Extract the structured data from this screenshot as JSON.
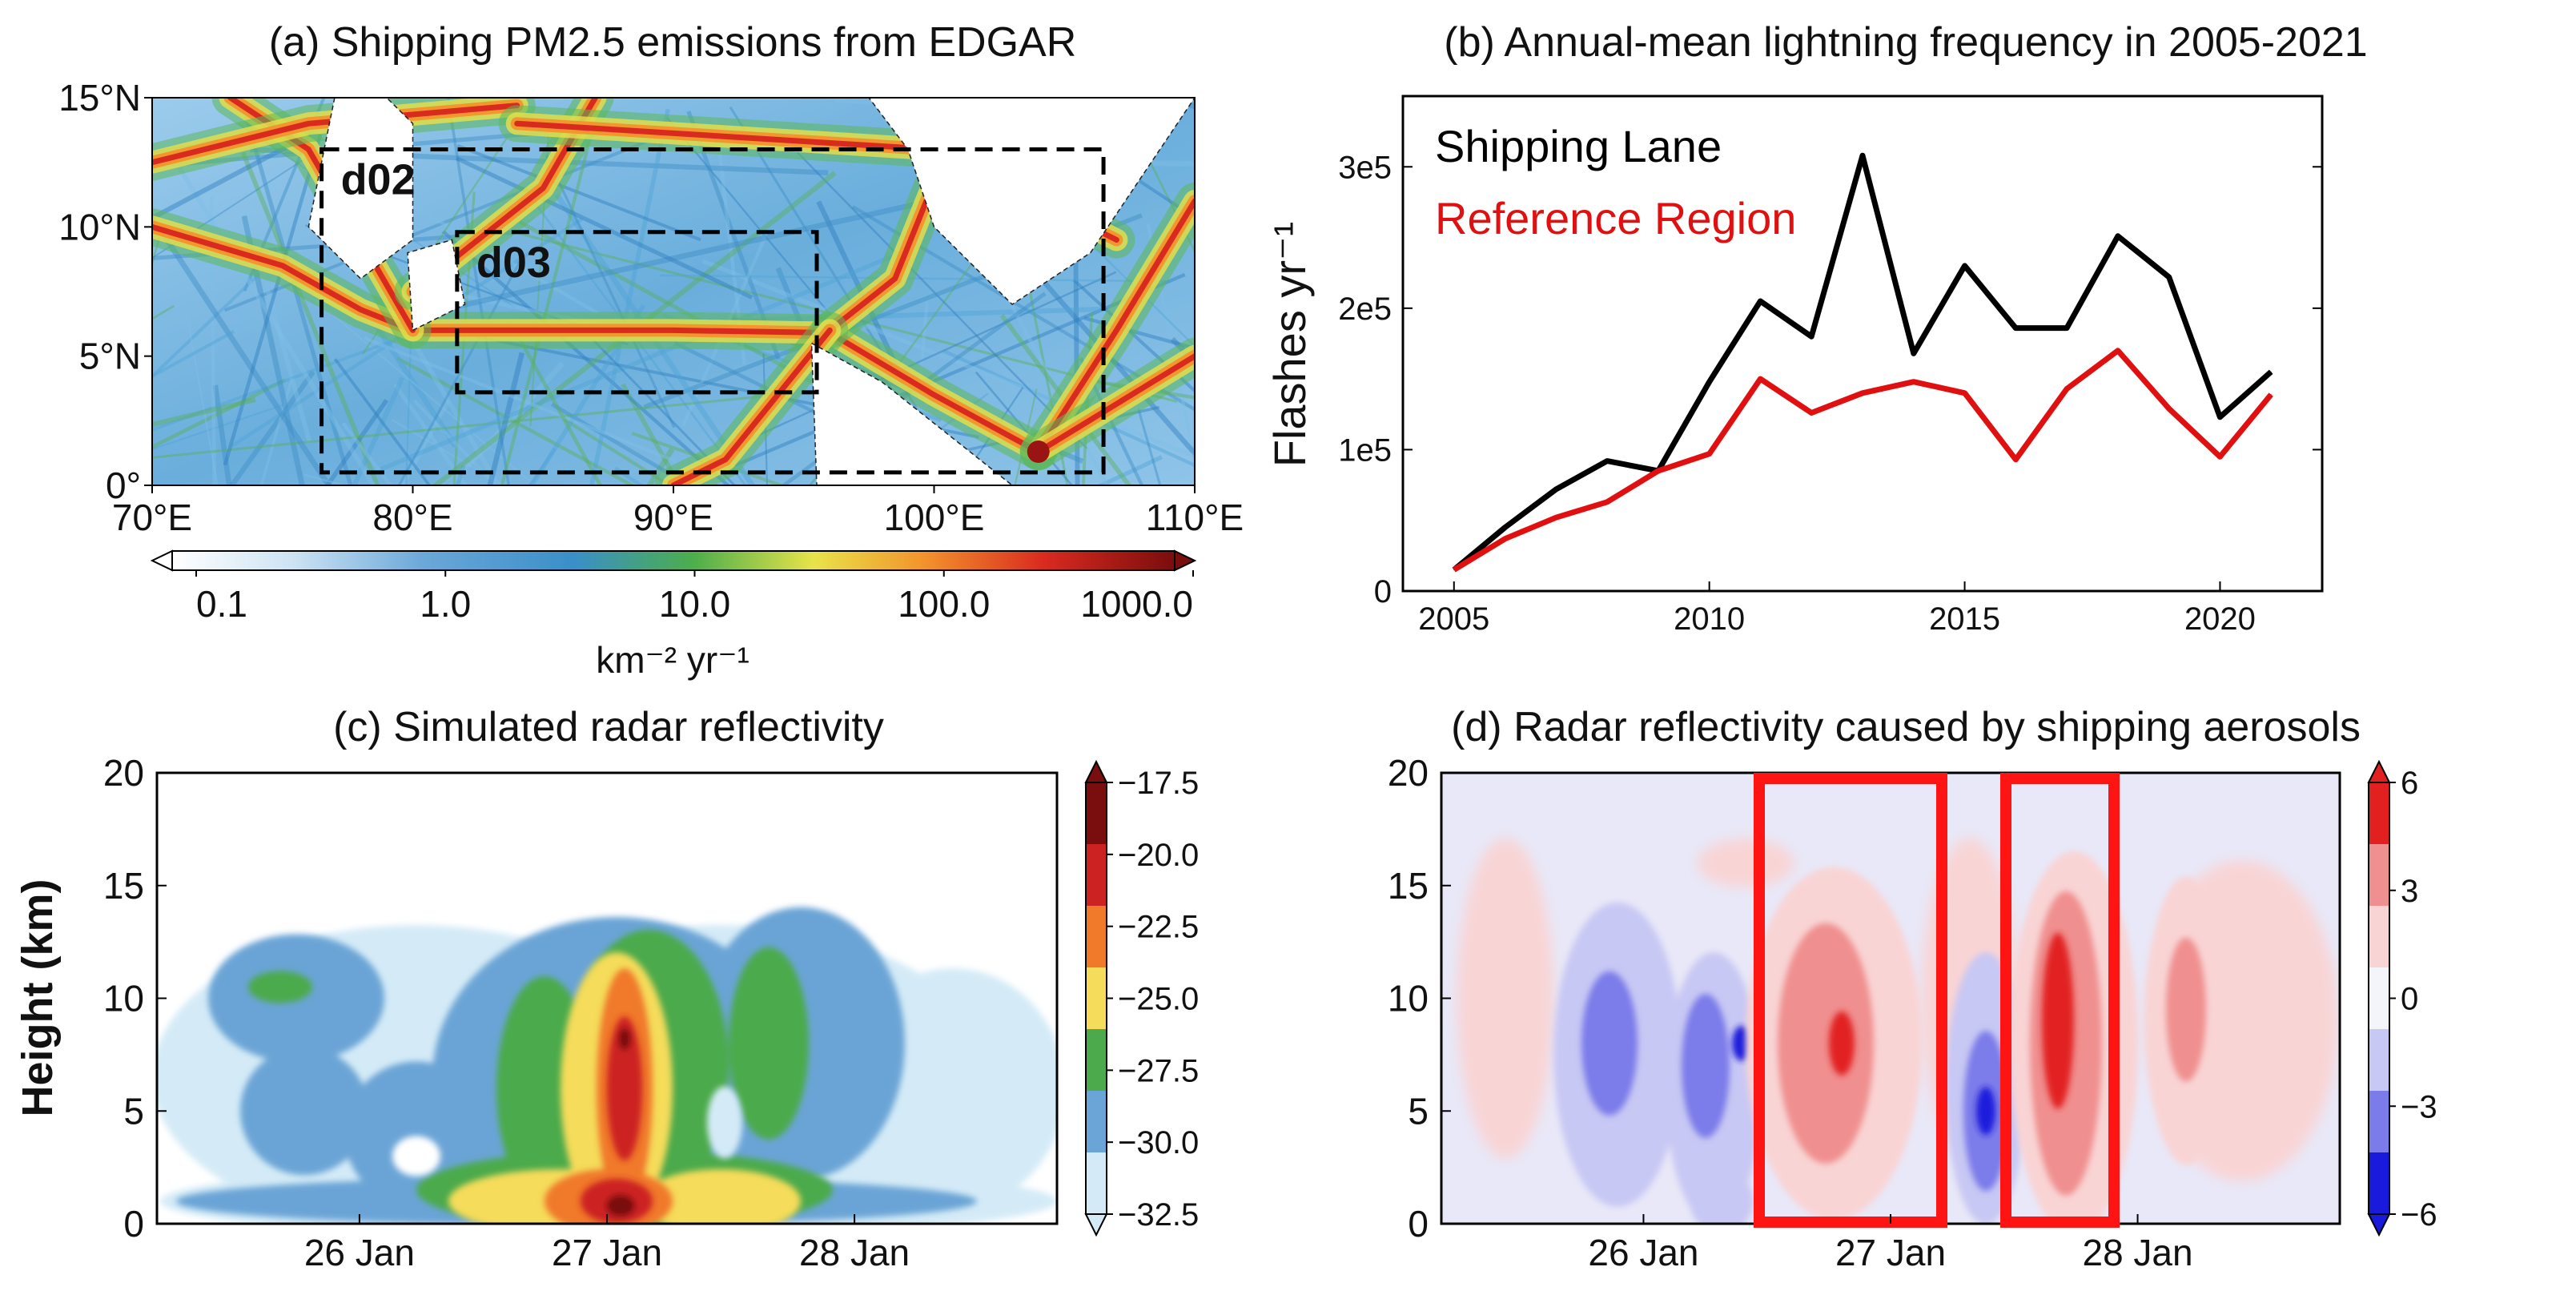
{
  "colors": {
    "shipping_lane": "#000000",
    "reference_region": "#e01010",
    "highlight_box": "#ff1414",
    "domain_box": "#000000"
  },
  "chart_data": [
    {
      "panel": "a",
      "type": "heatmap",
      "title": "(a) Shipping PM2.5 emissions from EDGAR",
      "x_ticks": [
        "70°E",
        "80°E",
        "90°E",
        "100°E",
        "110°E"
      ],
      "y_ticks": [
        "0°",
        "5°N",
        "10°N",
        "15°N"
      ],
      "xlim": [
        70,
        110
      ],
      "ylim": [
        0,
        15
      ],
      "colorbar": {
        "scale": "log",
        "label": "km⁻² yr⁻¹",
        "ticks": [
          "0.1",
          "1.0",
          "10.0",
          "100.0",
          "1000.0"
        ],
        "orientation": "horizontal",
        "extend": "both"
      },
      "domains": [
        {
          "label": "d02",
          "lon": [
            76.5,
            106.5
          ],
          "lat": [
            0.5,
            13
          ]
        },
        {
          "label": "d03",
          "lon": [
            81.7,
            95.5
          ],
          "lat": [
            3.6,
            9.8
          ]
        }
      ],
      "shipping_lanes": [
        [
          [
            70,
            10
          ],
          [
            75,
            8.5
          ],
          [
            78,
            6.8
          ],
          [
            80,
            6.0
          ],
          [
            90,
            6.0
          ],
          [
            96,
            5.9
          ],
          [
            100,
            3.5
          ],
          [
            104,
            1.3
          ]
        ],
        [
          [
            104,
            1.3
          ],
          [
            107,
            6
          ],
          [
            110,
            11
          ]
        ],
        [
          [
            104,
            1.3
          ],
          [
            110,
            5
          ]
        ],
        [
          [
            80,
            6.0
          ],
          [
            76,
            13
          ],
          [
            73,
            15
          ]
        ],
        [
          [
            70,
            12.5
          ],
          [
            76,
            14
          ],
          [
            84,
            14.7
          ]
        ],
        [
          [
            80,
            7.5
          ],
          [
            85,
            11.5
          ],
          [
            87,
            15
          ]
        ],
        [
          [
            84,
            14
          ],
          [
            100,
            13
          ],
          [
            107,
            9.5
          ]
        ],
        [
          [
            96,
            6
          ],
          [
            98.5,
            8
          ],
          [
            100.5,
            13
          ]
        ],
        [
          [
            96,
            6
          ],
          [
            92,
            1
          ],
          [
            90,
            0
          ]
        ]
      ],
      "land_masks": [
        {
          "name": "India",
          "outline": [
            [
              77,
              15
            ],
            [
              76,
              10
            ],
            [
              78,
              8
            ],
            [
              80,
              9.5
            ],
            [
              80,
              14
            ],
            [
              79,
              15
            ]
          ]
        },
        {
          "name": "Sri Lanka",
          "outline": [
            [
              80,
              6
            ],
            [
              82,
              7
            ],
            [
              81.5,
              9.5
            ],
            [
              79.8,
              9
            ]
          ]
        },
        {
          "name": "Indochina",
          "outline": [
            [
              92.5,
              15
            ],
            [
              97.5,
              15
            ],
            [
              99,
              13
            ],
            [
              100,
              10
            ],
            [
              103,
              7
            ],
            [
              106,
              9
            ],
            [
              110,
              15
            ]
          ]
        },
        {
          "name": "Sumatra",
          "outline": [
            [
              95.3,
              5.5
            ],
            [
              98,
              4
            ],
            [
              103,
              0
            ],
            [
              95.5,
              0
            ]
          ]
        }
      ]
    },
    {
      "panel": "b",
      "type": "line",
      "title": "(b) Annual-mean lightning frequency in 2005-2021",
      "ylabel": "Flashes yr⁻¹",
      "x_ticks": [
        "2005",
        "2010",
        "2015",
        "2020"
      ],
      "y_ticks": [
        "0",
        "1e5",
        "2e5",
        "3e5"
      ],
      "xlim": [
        2004,
        2022
      ],
      "ylim": [
        0,
        350000
      ],
      "legend_placement": "top-left",
      "x": [
        2005,
        2006,
        2007,
        2008,
        2009,
        2010,
        2011,
        2012,
        2013,
        2014,
        2015,
        2016,
        2017,
        2018,
        2019,
        2020,
        2021
      ],
      "series": [
        {
          "name": "Shipping Lane",
          "color": "#000000",
          "values": [
            15000,
            45000,
            72000,
            92000,
            85000,
            148000,
            205000,
            180000,
            308000,
            168000,
            230000,
            186000,
            186000,
            251000,
            222000,
            123000,
            155000
          ]
        },
        {
          "name": "Reference Region",
          "color": "#e01010",
          "values": [
            15000,
            37000,
            52000,
            63000,
            85000,
            97000,
            150000,
            126000,
            140000,
            148000,
            140000,
            93000,
            143000,
            170000,
            129000,
            95000,
            139000
          ]
        }
      ]
    },
    {
      "panel": "c",
      "type": "heatmap",
      "title": "(c) Simulated radar reflectivity",
      "ylabel": "Height (km)",
      "x_ticks": [
        "26 Jan",
        "27 Jan",
        "28 Jan"
      ],
      "y_ticks": [
        "0",
        "5",
        "10",
        "15",
        "20"
      ],
      "ylim": [
        0,
        20
      ],
      "colorbar": {
        "ticks": [
          "−17.5",
          "−20.0",
          "−22.5",
          "−25.0",
          "−27.5",
          "−30.0",
          "−32.5"
        ],
        "levels": [
          -32.5,
          -30.0,
          -27.5,
          -25.0,
          -22.5,
          -20.0,
          -17.5
        ],
        "colors": [
          "#d4ebf7",
          "#6ba4d6",
          "#4caa4c",
          "#f5dc5a",
          "#f0792a",
          "#cc2222",
          "#7a0d0d"
        ],
        "extend": "both"
      }
    },
    {
      "panel": "d",
      "type": "heatmap",
      "title": "(d) Radar reflectivity caused by shipping aerosols",
      "x_ticks": [
        "26 Jan",
        "27 Jan",
        "28 Jan"
      ],
      "y_ticks": [
        "0",
        "5",
        "10",
        "15",
        "20"
      ],
      "ylim": [
        0,
        20
      ],
      "colorbar": {
        "ticks": [
          "6",
          "3",
          "0",
          "−3",
          "−6"
        ],
        "levels": [
          -6,
          -3,
          0,
          3,
          6
        ],
        "colors": [
          "#1a1adc",
          "#7b7bea",
          "#c8c8f4",
          "#f4f4fb",
          "#f9d4d4",
          "#f08f8f",
          "#e22020"
        ],
        "extend": "both"
      },
      "highlight_windows": [
        "27 Jan",
        "28 Jan"
      ]
    }
  ]
}
